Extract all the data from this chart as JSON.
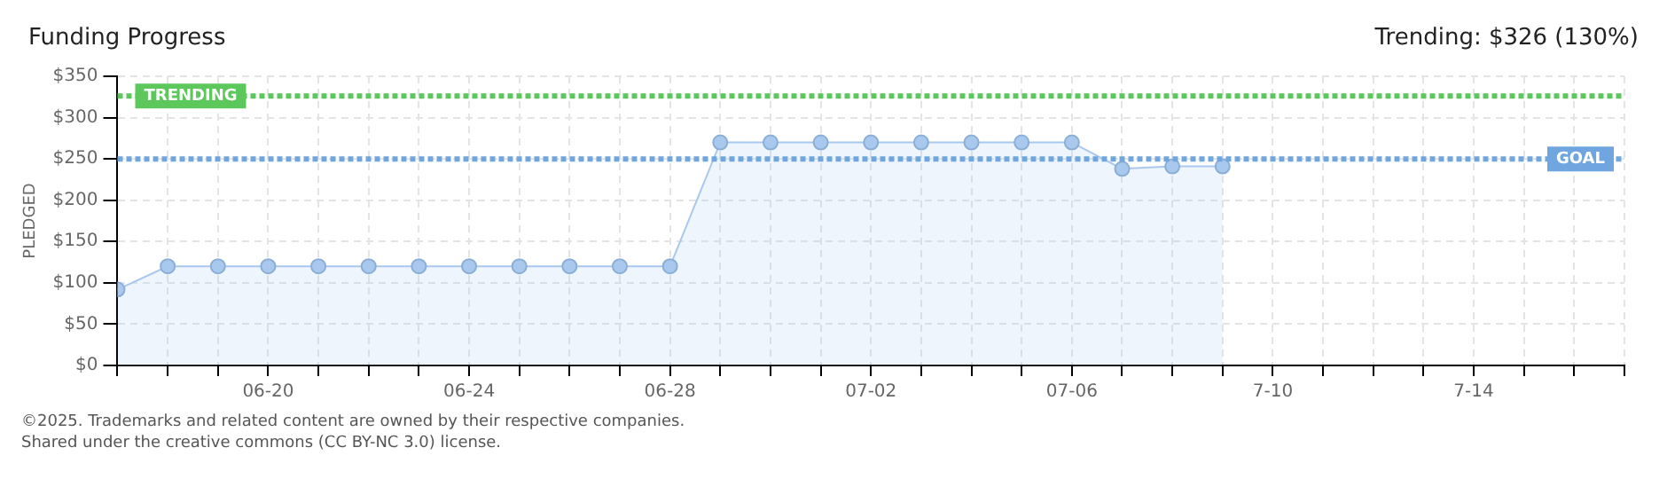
{
  "chart_data": {
    "type": "area",
    "title": "Funding Progress",
    "subtitle": "Trending: $326 (130%)",
    "ylabel": "PLEDGED",
    "annotations": [
      "©2025. Trademarks and related content are owned by their respective companies.",
      "Shared under the creative commons (CC BY-NC 3.0) license."
    ],
    "x": [
      "--06-17",
      "--06-18",
      "--06-19",
      "--06-20",
      "--06-21",
      "--06-22",
      "--06-23",
      "--06-24",
      "--06-25",
      "--06-26",
      "--06-27",
      "--06-28",
      "--06-29",
      "--06-30",
      "--07-01",
      "--07-02",
      "--07-03",
      "--07-04",
      "--07-05",
      "--07-06",
      "--07-07",
      "--07-08",
      "--07-09"
    ],
    "series": [
      {
        "color": "#a9c8ee",
        "values": [
          92,
          120,
          120,
          120,
          120,
          120,
          120,
          120,
          120,
          120,
          120,
          120,
          270,
          270,
          270,
          270,
          270,
          270,
          270,
          270,
          238,
          241,
          241
        ]
      }
    ],
    "xlim": [
      "--06-17",
      "--07-17"
    ],
    "xticks": [
      {
        "value": "--06-17",
        "label": null
      },
      {
        "value": "--06-18",
        "label": null
      },
      {
        "value": "--06-19",
        "label": null
      },
      {
        "value": "--06-20",
        "label": "06-20"
      },
      {
        "value": "--06-21",
        "label": null
      },
      {
        "value": "--06-22",
        "label": null
      },
      {
        "value": "--06-23",
        "label": null
      },
      {
        "value": "--06-24",
        "label": "06-24"
      },
      {
        "value": "--06-25",
        "label": null
      },
      {
        "value": "--06-26",
        "label": null
      },
      {
        "value": "--06-27",
        "label": null
      },
      {
        "value": "--06-28",
        "label": "06-28"
      },
      {
        "value": "--06-29",
        "label": null
      },
      {
        "value": "--06-30",
        "label": null
      },
      {
        "value": "--07-01",
        "label": null
      },
      {
        "value": "--07-02",
        "label": "07-02"
      },
      {
        "value": "--07-03",
        "label": null
      },
      {
        "value": "--07-04",
        "label": null
      },
      {
        "value": "--07-05",
        "label": null
      },
      {
        "value": "--07-06",
        "label": "07-06"
      },
      {
        "value": "--07-07",
        "label": null
      },
      {
        "value": "--07-08",
        "label": null
      },
      {
        "value": "--07-09",
        "label": null
      },
      {
        "value": "--07-10",
        "label": "7-10"
      },
      {
        "value": "--07-11",
        "label": null
      },
      {
        "value": "--07-12",
        "label": null
      },
      {
        "value": "--07-13",
        "label": null
      },
      {
        "value": "--07-14",
        "label": "7-14"
      },
      {
        "value": "--07-15",
        "label": null
      },
      {
        "value": "--07-16",
        "label": null
      },
      {
        "value": "--07-17",
        "label": null
      }
    ],
    "ylim": [
      0,
      350
    ],
    "yticks": [
      {
        "value": 0,
        "label": "$0"
      },
      {
        "value": 50,
        "label": "$50"
      },
      {
        "value": 100,
        "label": "$100"
      },
      {
        "value": 150,
        "label": "$150"
      },
      {
        "value": 200,
        "label": "$200"
      },
      {
        "value": 250,
        "label": "$250"
      },
      {
        "value": 300,
        "label": "$300"
      },
      {
        "value": 350,
        "label": "$350"
      }
    ],
    "ref_lines": [
      {
        "axis": "y",
        "value": 326,
        "label": "TRENDING",
        "color": "#5cc85c",
        "line_style": "dotted"
      },
      {
        "axis": "y",
        "value": 250,
        "label": "GOAL",
        "color": "#6fa6e0",
        "line_style": "dotted"
      }
    ],
    "grid": true,
    "legend": false,
    "marker": "circle",
    "line_style": "solid"
  }
}
